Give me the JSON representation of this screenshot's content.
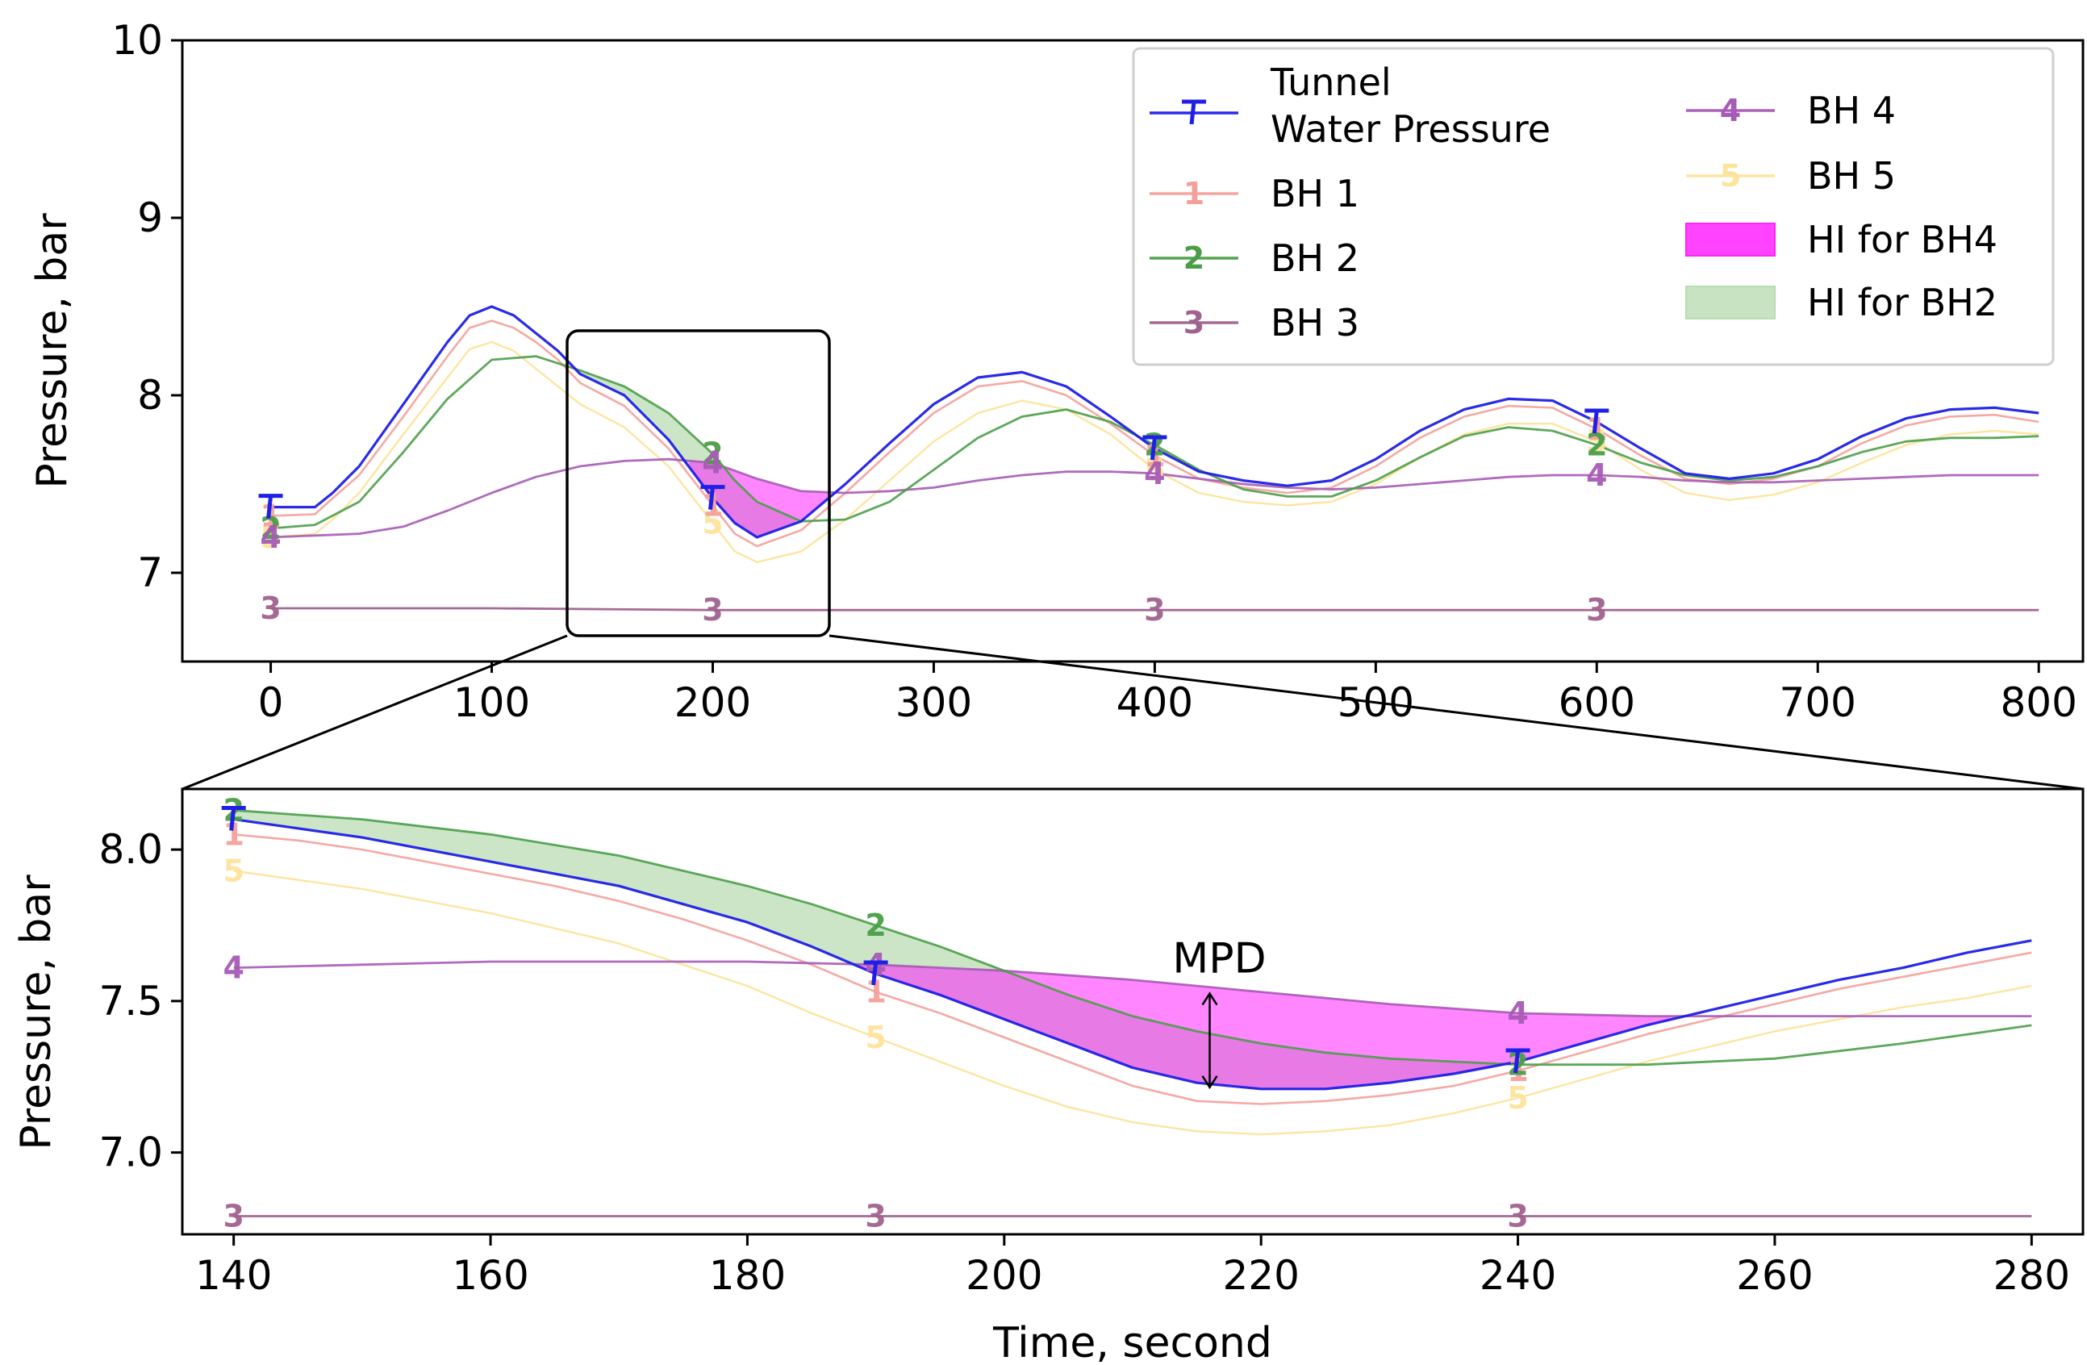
{
  "colors": {
    "tunnel": "#1f1fe6",
    "bh1": "#f4a09a",
    "bh2": "#4a9e48",
    "bh3": "#a0628e",
    "bh4": "#a65bb5",
    "bh5": "#fde49c",
    "hi_bh4": "#ff22ff",
    "hi_bh2": "#b9dcb3"
  },
  "legend": {
    "placement": "top-right",
    "items": [
      {
        "key": "tunnel",
        "marker": "T",
        "label_lines": [
          "Tunnel",
          "Water Pressure"
        ],
        "kind": "line"
      },
      {
        "key": "bh1",
        "marker": "1",
        "label_lines": [
          "BH 1"
        ],
        "kind": "line"
      },
      {
        "key": "bh2",
        "marker": "2",
        "label_lines": [
          "BH 2"
        ],
        "kind": "line"
      },
      {
        "key": "bh3",
        "marker": "3",
        "label_lines": [
          "BH 3"
        ],
        "kind": "line"
      },
      {
        "key": "bh4",
        "marker": "4",
        "label_lines": [
          "BH 4"
        ],
        "kind": "line"
      },
      {
        "key": "bh5",
        "marker": "5",
        "label_lines": [
          "BH 5"
        ],
        "kind": "line"
      },
      {
        "key": "hi_bh4",
        "marker": "",
        "label_lines": [
          "HI for BH4"
        ],
        "kind": "patch"
      },
      {
        "key": "hi_bh2",
        "marker": "",
        "label_lines": [
          "HI for BH2"
        ],
        "kind": "patch"
      }
    ]
  },
  "chart_data": [
    {
      "type": "line",
      "panel": "overview",
      "xlabel": "",
      "ylabel": "Pressure, bar",
      "xlim": [
        -40,
        820
      ],
      "ylim": [
        6.5,
        10
      ],
      "xticks": [
        0,
        100,
        200,
        300,
        400,
        500,
        600,
        700,
        800
      ],
      "yticks": [
        7,
        8,
        9,
        10
      ],
      "marker_x": [
        0,
        200,
        400,
        600
      ],
      "series": [
        {
          "key": "tunnel",
          "name": "Tunnel Water Pressure",
          "marker": "T",
          "x": [
            0,
            20,
            28,
            40,
            60,
            80,
            90,
            100,
            110,
            120,
            130,
            140,
            160,
            180,
            200,
            210,
            220,
            240,
            260,
            280,
            300,
            320,
            340,
            360,
            380,
            400,
            420,
            440,
            460,
            480,
            500,
            520,
            540,
            560,
            580,
            600,
            620,
            640,
            660,
            680,
            700,
            720,
            740,
            760,
            780,
            800
          ],
          "y": [
            7.37,
            7.37,
            7.45,
            7.6,
            7.95,
            8.3,
            8.45,
            8.5,
            8.45,
            8.35,
            8.25,
            8.12,
            8.0,
            7.75,
            7.42,
            7.28,
            7.2,
            7.29,
            7.5,
            7.73,
            7.95,
            8.1,
            8.13,
            8.05,
            7.88,
            7.7,
            7.57,
            7.52,
            7.49,
            7.52,
            7.64,
            7.8,
            7.92,
            7.98,
            7.97,
            7.85,
            7.7,
            7.56,
            7.53,
            7.56,
            7.64,
            7.77,
            7.87,
            7.92,
            7.93,
            7.9
          ]
        },
        {
          "key": "bh1",
          "name": "BH 1",
          "marker": "1",
          "x": [
            0,
            20,
            28,
            40,
            60,
            80,
            90,
            100,
            110,
            120,
            130,
            140,
            160,
            180,
            200,
            210,
            220,
            240,
            260,
            280,
            300,
            320,
            340,
            360,
            380,
            400,
            420,
            440,
            460,
            480,
            500,
            520,
            540,
            560,
            580,
            600,
            620,
            640,
            660,
            680,
            700,
            720,
            740,
            760,
            780,
            800
          ],
          "y": [
            7.32,
            7.33,
            7.42,
            7.55,
            7.88,
            8.22,
            8.38,
            8.42,
            8.38,
            8.3,
            8.2,
            8.07,
            7.94,
            7.7,
            7.38,
            7.22,
            7.15,
            7.24,
            7.45,
            7.68,
            7.9,
            8.05,
            8.08,
            8.0,
            7.84,
            7.66,
            7.53,
            7.48,
            7.45,
            7.48,
            7.6,
            7.76,
            7.88,
            7.94,
            7.93,
            7.81,
            7.66,
            7.53,
            7.5,
            7.53,
            7.6,
            7.73,
            7.83,
            7.88,
            7.89,
            7.85
          ]
        },
        {
          "key": "bh2",
          "name": "BH 2",
          "marker": "2",
          "x": [
            0,
            20,
            40,
            60,
            80,
            100,
            120,
            140,
            160,
            180,
            200,
            210,
            220,
            240,
            260,
            280,
            300,
            320,
            340,
            360,
            380,
            400,
            420,
            440,
            460,
            480,
            500,
            520,
            540,
            560,
            580,
            600,
            620,
            640,
            660,
            680,
            700,
            720,
            740,
            760,
            780,
            800
          ],
          "y": [
            7.25,
            7.27,
            7.4,
            7.68,
            7.98,
            8.2,
            8.22,
            8.14,
            8.05,
            7.9,
            7.67,
            7.52,
            7.4,
            7.29,
            7.3,
            7.4,
            7.58,
            7.76,
            7.88,
            7.92,
            7.85,
            7.72,
            7.58,
            7.47,
            7.43,
            7.43,
            7.52,
            7.65,
            7.77,
            7.82,
            7.8,
            7.72,
            7.62,
            7.55,
            7.52,
            7.54,
            7.6,
            7.68,
            7.74,
            7.76,
            7.76,
            7.77
          ]
        },
        {
          "key": "bh3",
          "name": "BH 3",
          "marker": "3",
          "x": [
            0,
            100,
            200,
            300,
            400,
            500,
            600,
            700,
            800
          ],
          "y": [
            6.8,
            6.8,
            6.79,
            6.79,
            6.79,
            6.79,
            6.79,
            6.79,
            6.79
          ]
        },
        {
          "key": "bh4",
          "name": "BH 4",
          "marker": "4",
          "x": [
            0,
            40,
            60,
            80,
            100,
            120,
            140,
            160,
            180,
            200,
            220,
            240,
            260,
            280,
            300,
            320,
            340,
            360,
            380,
            400,
            420,
            440,
            460,
            480,
            500,
            520,
            540,
            560,
            580,
            600,
            620,
            640,
            660,
            680,
            700,
            720,
            740,
            760,
            780,
            800
          ],
          "y": [
            7.2,
            7.22,
            7.26,
            7.35,
            7.45,
            7.54,
            7.6,
            7.63,
            7.64,
            7.62,
            7.53,
            7.46,
            7.45,
            7.46,
            7.48,
            7.52,
            7.55,
            7.57,
            7.57,
            7.56,
            7.53,
            7.5,
            7.48,
            7.47,
            7.48,
            7.5,
            7.52,
            7.54,
            7.55,
            7.55,
            7.54,
            7.52,
            7.51,
            7.51,
            7.52,
            7.53,
            7.54,
            7.55,
            7.55,
            7.55
          ]
        },
        {
          "key": "bh5",
          "name": "BH 5",
          "marker": "5",
          "x": [
            0,
            20,
            28,
            40,
            60,
            80,
            90,
            100,
            110,
            120,
            130,
            140,
            160,
            180,
            200,
            210,
            220,
            240,
            260,
            280,
            300,
            320,
            340,
            360,
            380,
            400,
            420,
            440,
            460,
            480,
            500,
            520,
            540,
            560,
            580,
            600,
            620,
            640,
            660,
            680,
            700,
            720,
            740,
            760,
            780,
            800
          ],
          "y": [
            7.2,
            7.22,
            7.3,
            7.45,
            7.78,
            8.1,
            8.26,
            8.3,
            8.25,
            8.15,
            8.05,
            7.95,
            7.82,
            7.6,
            7.28,
            7.12,
            7.06,
            7.12,
            7.3,
            7.52,
            7.74,
            7.9,
            7.97,
            7.92,
            7.78,
            7.58,
            7.45,
            7.4,
            7.38,
            7.4,
            7.5,
            7.65,
            7.78,
            7.84,
            7.84,
            7.74,
            7.58,
            7.45,
            7.41,
            7.44,
            7.51,
            7.62,
            7.72,
            7.78,
            7.8,
            7.78
          ]
        }
      ]
    },
    {
      "type": "line",
      "panel": "zoom",
      "xlabel": "Time, second",
      "ylabel": "Pressure, bar",
      "xlim": [
        136,
        284
      ],
      "ylim": [
        6.73,
        8.2
      ],
      "xticks": [
        140,
        160,
        180,
        200,
        220,
        240,
        260,
        280
      ],
      "yticks": [
        7.0,
        7.5,
        8.0
      ],
      "marker_x": [
        140,
        190,
        240
      ],
      "annotation": {
        "text": "MPD",
        "x": 216,
        "y_top": 7.53,
        "y_bottom": 7.21
      },
      "series": [
        {
          "key": "tunnel",
          "name": "Tunnel Water Pressure",
          "marker": "T",
          "x": [
            140,
            145,
            150,
            155,
            160,
            165,
            170,
            175,
            180,
            185,
            190,
            195,
            200,
            205,
            210,
            215,
            220,
            225,
            230,
            235,
            240,
            245,
            250,
            255,
            260,
            265,
            270,
            275,
            280
          ],
          "y": [
            8.1,
            8.07,
            8.04,
            8.0,
            7.96,
            7.92,
            7.88,
            7.82,
            7.76,
            7.68,
            7.59,
            7.52,
            7.44,
            7.36,
            7.28,
            7.23,
            7.21,
            7.21,
            7.23,
            7.26,
            7.3,
            7.36,
            7.42,
            7.47,
            7.52,
            7.57,
            7.61,
            7.66,
            7.7
          ]
        },
        {
          "key": "bh1",
          "name": "BH 1",
          "marker": "1",
          "x": [
            140,
            145,
            150,
            155,
            160,
            165,
            170,
            175,
            180,
            185,
            190,
            195,
            200,
            205,
            210,
            215,
            220,
            225,
            230,
            235,
            240,
            245,
            250,
            255,
            260,
            265,
            270,
            275,
            280
          ],
          "y": [
            8.05,
            8.03,
            8.0,
            7.96,
            7.92,
            7.88,
            7.83,
            7.77,
            7.7,
            7.62,
            7.53,
            7.46,
            7.38,
            7.3,
            7.22,
            7.17,
            7.16,
            7.17,
            7.19,
            7.22,
            7.27,
            7.33,
            7.39,
            7.44,
            7.49,
            7.54,
            7.58,
            7.62,
            7.66
          ]
        },
        {
          "key": "bh2",
          "name": "BH 2",
          "marker": "2",
          "x": [
            140,
            150,
            160,
            170,
            180,
            185,
            190,
            195,
            200,
            205,
            210,
            215,
            220,
            225,
            230,
            235,
            240,
            250,
            260,
            270,
            280
          ],
          "y": [
            8.13,
            8.1,
            8.05,
            7.98,
            7.88,
            7.82,
            7.75,
            7.68,
            7.6,
            7.52,
            7.45,
            7.4,
            7.36,
            7.33,
            7.31,
            7.3,
            7.29,
            7.29,
            7.31,
            7.36,
            7.42
          ]
        },
        {
          "key": "bh3",
          "name": "BH 3",
          "marker": "3",
          "x": [
            140,
            160,
            180,
            200,
            220,
            240,
            260,
            280
          ],
          "y": [
            6.79,
            6.79,
            6.79,
            6.79,
            6.79,
            6.79,
            6.79,
            6.79
          ]
        },
        {
          "key": "bh4",
          "name": "BH 4",
          "marker": "4",
          "x": [
            140,
            150,
            160,
            170,
            180,
            190,
            200,
            210,
            220,
            230,
            240,
            250,
            260,
            270,
            280
          ],
          "y": [
            7.61,
            7.62,
            7.63,
            7.63,
            7.63,
            7.62,
            7.6,
            7.57,
            7.53,
            7.49,
            7.46,
            7.45,
            7.45,
            7.45,
            7.45
          ]
        },
        {
          "key": "bh5",
          "name": "BH 5",
          "marker": "5",
          "x": [
            140,
            145,
            150,
            155,
            160,
            165,
            170,
            175,
            180,
            185,
            190,
            195,
            200,
            205,
            210,
            215,
            220,
            225,
            230,
            235,
            240,
            245,
            250,
            255,
            260,
            265,
            270,
            275,
            280
          ],
          "y": [
            7.93,
            7.9,
            7.87,
            7.83,
            7.79,
            7.74,
            7.69,
            7.62,
            7.55,
            7.46,
            7.38,
            7.3,
            7.22,
            7.15,
            7.1,
            7.07,
            7.06,
            7.07,
            7.09,
            7.13,
            7.18,
            7.24,
            7.3,
            7.35,
            7.4,
            7.44,
            7.48,
            7.51,
            7.55
          ]
        }
      ]
    }
  ]
}
